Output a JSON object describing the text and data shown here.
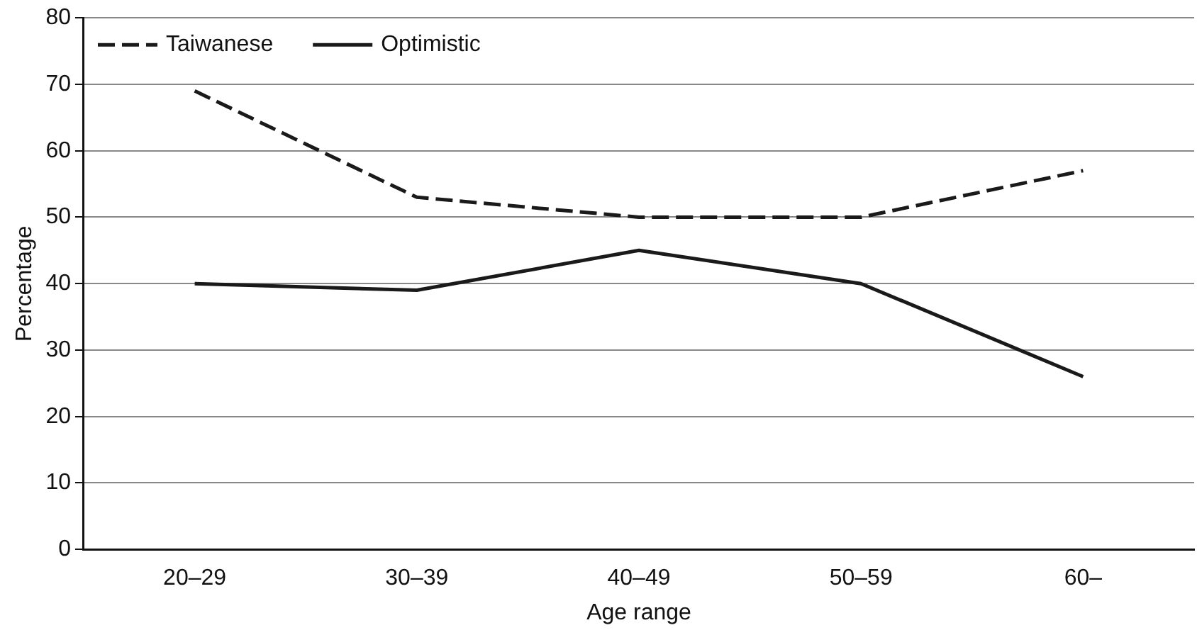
{
  "chart_data": {
    "type": "line",
    "xlabel": "Age range",
    "ylabel": "Percentage",
    "categories": [
      "20–29",
      "30–39",
      "40–49",
      "50–59",
      "60–"
    ],
    "series": [
      {
        "name": "Taiwanese",
        "color": "#1a1a1a",
        "line_style": "dashed",
        "values": [
          69,
          53,
          50,
          50,
          57
        ]
      },
      {
        "name": "Optimistic",
        "color": "#1a1a1a",
        "line_style": "solid",
        "values": [
          40,
          39,
          45,
          40,
          26
        ]
      }
    ],
    "ylim": [
      0,
      80
    ],
    "yticks": [
      0,
      10,
      20,
      30,
      40,
      50,
      60,
      70,
      80
    ],
    "grid": "y",
    "legend": "top left",
    "marker": "none"
  }
}
